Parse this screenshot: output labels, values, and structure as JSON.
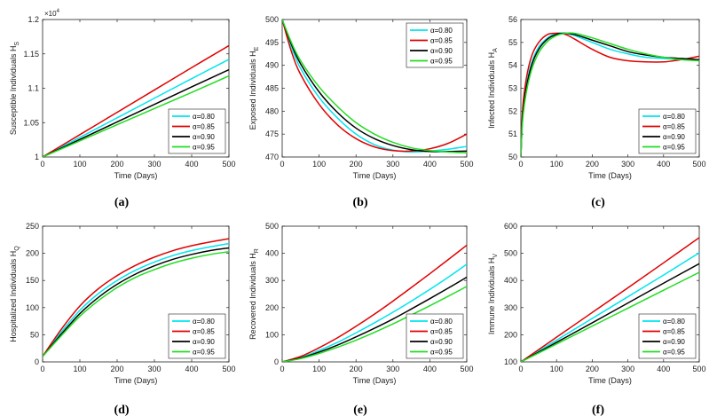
{
  "figure": {
    "xlabel_common": "Time (Days)"
  },
  "legend": {
    "labels": [
      "α=0.80",
      "α=0.85",
      "α=0.90",
      "α=0.95"
    ]
  },
  "colors": {
    "a080": "#00e5ee",
    "a085": "#e00000",
    "a090": "#000000",
    "a095": "#22dd22",
    "axis": "#222222"
  },
  "chart_data": [
    {
      "id": "a",
      "panel_label": "(a)",
      "type": "line",
      "xlabel": "Time (Days)",
      "ylabel": "Susceptible Individuals H",
      "ylabel_sub": "S",
      "xlim": [
        0,
        500
      ],
      "ylim": [
        1.0,
        1.2
      ],
      "xticks": [
        0,
        100,
        200,
        300,
        400,
        500
      ],
      "xtick_labels": [
        "0",
        "100",
        "200",
        "300",
        "400",
        "500"
      ],
      "yticks": [
        1.0,
        1.05,
        1.1,
        1.15,
        1.2
      ],
      "ytick_labels": [
        "1",
        "1.05",
        "1.1",
        "1.15",
        "1.2"
      ],
      "multiplier": "×10",
      "multiplier_exp": "4",
      "legend_position": "bottom-right",
      "series": [
        {
          "name": "α=0.80",
          "color": "#00e5ee",
          "x": [
            0,
            100,
            200,
            300,
            400,
            500
          ],
          "y": [
            1.0,
            1.0285,
            1.057,
            1.0855,
            1.114,
            1.142
          ]
        },
        {
          "name": "α=0.85",
          "color": "#e00000",
          "x": [
            0,
            100,
            200,
            300,
            400,
            500
          ],
          "y": [
            1.0,
            1.0325,
            1.065,
            1.0975,
            1.13,
            1.162
          ]
        },
        {
          "name": "α=0.90",
          "color": "#000000",
          "x": [
            0,
            100,
            200,
            300,
            400,
            500
          ],
          "y": [
            1.0,
            1.0255,
            1.051,
            1.0765,
            1.102,
            1.127
          ]
        },
        {
          "name": "α=0.95",
          "color": "#22dd22",
          "x": [
            0,
            100,
            200,
            300,
            400,
            500
          ],
          "y": [
            1.0,
            1.0235,
            1.047,
            1.0705,
            1.094,
            1.118
          ]
        }
      ]
    },
    {
      "id": "b",
      "panel_label": "(b)",
      "type": "line",
      "xlabel": "Time (Days)",
      "ylabel": "Exposed Individuals H",
      "ylabel_sub": "E",
      "xlim": [
        0,
        500
      ],
      "ylim": [
        470,
        500
      ],
      "xticks": [
        0,
        100,
        200,
        300,
        400,
        500
      ],
      "xtick_labels": [
        "0",
        "100",
        "200",
        "300",
        "400",
        "500"
      ],
      "yticks": [
        470,
        475,
        480,
        485,
        490,
        495,
        500
      ],
      "ytick_labels": [
        "470",
        "475",
        "480",
        "485",
        "490",
        "495",
        "500"
      ],
      "legend_position": "top-right",
      "series": [
        {
          "name": "α=0.80",
          "color": "#00e5ee",
          "x": [
            0,
            25,
            50,
            100,
            150,
            200,
            250,
            300,
            350,
            400,
            450,
            500
          ],
          "y": [
            500,
            494,
            489.3,
            483,
            478.5,
            475,
            472.7,
            471.5,
            471.1,
            471.3,
            471.7,
            472.3
          ]
        },
        {
          "name": "α=0.85",
          "color": "#e00000",
          "x": [
            0,
            25,
            50,
            100,
            150,
            200,
            250,
            300,
            350,
            400,
            450,
            500
          ],
          "y": [
            500,
            493,
            488,
            481.5,
            477,
            474,
            472.2,
            471.4,
            471.3,
            471.8,
            473,
            475
          ]
        },
        {
          "name": "α=0.90",
          "color": "#000000",
          "x": [
            0,
            25,
            50,
            100,
            150,
            200,
            250,
            300,
            350,
            400,
            450,
            500
          ],
          "y": [
            500,
            494.6,
            490.3,
            484.2,
            479.7,
            476.3,
            474,
            472.5,
            471.6,
            471.2,
            471.2,
            471.3
          ]
        },
        {
          "name": "α=0.95",
          "color": "#22dd22",
          "x": [
            0,
            25,
            50,
            100,
            150,
            200,
            250,
            300,
            350,
            400,
            450,
            500
          ],
          "y": [
            500,
            495,
            491,
            485.3,
            481,
            477.5,
            475,
            473.2,
            472,
            471.4,
            471.1,
            470.9
          ]
        }
      ]
    },
    {
      "id": "c",
      "panel_label": "(c)",
      "type": "line",
      "xlabel": "Time (Days)",
      "ylabel": "Infected Individuals H",
      "ylabel_sub": "A",
      "xlim": [
        0,
        500
      ],
      "ylim": [
        50,
        56
      ],
      "xticks": [
        0,
        100,
        200,
        300,
        400,
        500
      ],
      "xtick_labels": [
        "0",
        "100",
        "200",
        "300",
        "400",
        "500"
      ],
      "yticks": [
        50,
        51,
        52,
        53,
        54,
        55,
        56
      ],
      "ytick_labels": [
        "50",
        "51",
        "52",
        "53",
        "54",
        "55",
        "56"
      ],
      "legend_position": "bottom-right",
      "series": [
        {
          "name": "α=0.80",
          "color": "#00e5ee",
          "x": [
            0,
            5,
            15,
            30,
            50,
            75,
            100,
            125,
            150,
            200,
            250,
            300,
            350,
            400,
            450,
            500
          ],
          "y": [
            50,
            51.9,
            53.1,
            54.1,
            54.8,
            55.2,
            55.4,
            55.4,
            55.3,
            55.0,
            54.7,
            54.5,
            54.35,
            54.3,
            54.25,
            54.25
          ]
        },
        {
          "name": "α=0.85",
          "color": "#e00000",
          "x": [
            0,
            5,
            15,
            30,
            50,
            75,
            100,
            125,
            150,
            200,
            250,
            300,
            350,
            400,
            450,
            500
          ],
          "y": [
            50,
            52.1,
            53.4,
            54.4,
            55.0,
            55.35,
            55.4,
            55.35,
            55.15,
            54.7,
            54.35,
            54.2,
            54.15,
            54.15,
            54.25,
            54.4
          ]
        },
        {
          "name": "α=0.90",
          "color": "#000000",
          "x": [
            0,
            5,
            15,
            30,
            50,
            75,
            100,
            125,
            150,
            200,
            250,
            300,
            350,
            400,
            450,
            500
          ],
          "y": [
            50,
            51.8,
            53.0,
            54.0,
            54.7,
            55.15,
            55.35,
            55.4,
            55.35,
            55.1,
            54.85,
            54.6,
            54.45,
            54.35,
            54.3,
            54.25
          ]
        },
        {
          "name": "α=0.95",
          "color": "#22dd22",
          "x": [
            0,
            5,
            15,
            30,
            50,
            75,
            100,
            125,
            150,
            200,
            250,
            300,
            350,
            400,
            450,
            500
          ],
          "y": [
            50,
            51.6,
            52.8,
            53.8,
            54.55,
            55.05,
            55.3,
            55.4,
            55.4,
            55.2,
            54.95,
            54.7,
            54.5,
            54.35,
            54.25,
            54.2
          ]
        }
      ]
    },
    {
      "id": "d",
      "panel_label": "(d)",
      "type": "line",
      "xlabel": "Time (Days)",
      "ylabel": "Hospitalized Individuals H",
      "ylabel_sub": "Q",
      "xlim": [
        0,
        500
      ],
      "ylim": [
        0,
        250
      ],
      "xticks": [
        0,
        100,
        200,
        300,
        400,
        500
      ],
      "xtick_labels": [
        "0",
        "100",
        "200",
        "300",
        "400",
        "500"
      ],
      "yticks": [
        0,
        50,
        100,
        150,
        200,
        250
      ],
      "ytick_labels": [
        "0",
        "50",
        "100",
        "150",
        "200",
        "250"
      ],
      "legend_position": "bottom-right",
      "series": [
        {
          "name": "α=0.80",
          "color": "#00e5ee",
          "x": [
            0,
            50,
            100,
            150,
            200,
            250,
            300,
            350,
            400,
            450,
            500
          ],
          "y": [
            10,
            55,
            95,
            126,
            150,
            169,
            184,
            196,
            205,
            212,
            218
          ]
        },
        {
          "name": "α=0.85",
          "color": "#e00000",
          "x": [
            0,
            50,
            100,
            150,
            200,
            250,
            300,
            350,
            400,
            450,
            500
          ],
          "y": [
            10,
            60,
            103,
            135,
            159,
            178,
            193,
            205,
            214,
            221,
            227
          ]
        },
        {
          "name": "α=0.90",
          "color": "#000000",
          "x": [
            0,
            50,
            100,
            150,
            200,
            250,
            300,
            350,
            400,
            450,
            500
          ],
          "y": [
            10,
            51,
            89,
            119,
            143,
            162,
            177,
            189,
            198,
            205,
            210
          ]
        },
        {
          "name": "α=0.95",
          "color": "#22dd22",
          "x": [
            0,
            50,
            100,
            150,
            200,
            250,
            300,
            350,
            400,
            450,
            500
          ],
          "y": [
            10,
            48,
            84,
            113,
            137,
            156,
            170,
            182,
            191,
            198,
            203
          ]
        }
      ]
    },
    {
      "id": "e",
      "panel_label": "(e)",
      "type": "line",
      "xlabel": "Time (Days)",
      "ylabel": "Recovered Individuals H",
      "ylabel_sub": "R",
      "xlim": [
        0,
        500
      ],
      "ylim": [
        0,
        500
      ],
      "xticks": [
        0,
        100,
        200,
        300,
        400,
        500
      ],
      "xtick_labels": [
        "0",
        "100",
        "200",
        "300",
        "400",
        "500"
      ],
      "yticks": [
        0,
        100,
        200,
        300,
        400,
        500
      ],
      "ytick_labels": [
        "0",
        "100",
        "200",
        "300",
        "400",
        "500"
      ],
      "legend_position": "bottom-right",
      "series": [
        {
          "name": "α=0.80",
          "color": "#00e5ee",
          "x": [
            0,
            50,
            100,
            150,
            200,
            250,
            300,
            350,
            400,
            450,
            500
          ],
          "y": [
            0,
            16,
            42,
            72,
            107,
            144,
            183,
            224,
            267,
            312,
            360
          ]
        },
        {
          "name": "α=0.85",
          "color": "#e00000",
          "x": [
            0,
            50,
            100,
            150,
            200,
            250,
            300,
            350,
            400,
            450,
            500
          ],
          "y": [
            0,
            20,
            52,
            89,
            131,
            176,
            224,
            274,
            325,
            377,
            430
          ]
        },
        {
          "name": "α=0.90",
          "color": "#000000",
          "x": [
            0,
            50,
            100,
            150,
            200,
            250,
            300,
            350,
            400,
            450,
            500
          ],
          "y": [
            0,
            14,
            36,
            62,
            92,
            124,
            158,
            195,
            233,
            272,
            312
          ]
        },
        {
          "name": "α=0.95",
          "color": "#22dd22",
          "x": [
            0,
            50,
            100,
            150,
            200,
            250,
            300,
            350,
            400,
            450,
            500
          ],
          "y": [
            0,
            12,
            31,
            54,
            80,
            109,
            140,
            173,
            207,
            242,
            278
          ]
        }
      ]
    },
    {
      "id": "f",
      "panel_label": "(f)",
      "type": "line",
      "xlabel": "Time (Days)",
      "ylabel": "Immune Individuals H",
      "ylabel_sub": "V",
      "xlim": [
        0,
        500
      ],
      "ylim": [
        100,
        600
      ],
      "xticks": [
        0,
        100,
        200,
        300,
        400,
        500
      ],
      "xtick_labels": [
        "0",
        "100",
        "200",
        "300",
        "400",
        "500"
      ],
      "yticks": [
        100,
        200,
        300,
        400,
        500,
        600
      ],
      "ytick_labels": [
        "100",
        "200",
        "300",
        "400",
        "500",
        "600"
      ],
      "legend_position": "bottom-right",
      "series": [
        {
          "name": "α=0.80",
          "color": "#00e5ee",
          "x": [
            0,
            100,
            200,
            300,
            400,
            500
          ],
          "y": [
            100,
            180,
            260,
            340,
            420,
            502
          ]
        },
        {
          "name": "α=0.85",
          "color": "#e00000",
          "x": [
            0,
            100,
            200,
            300,
            400,
            500
          ],
          "y": [
            100,
            191,
            282,
            373,
            465,
            558
          ]
        },
        {
          "name": "α=0.90",
          "color": "#000000",
          "x": [
            0,
            100,
            200,
            300,
            400,
            500
          ],
          "y": [
            100,
            172,
            244,
            317,
            390,
            462
          ]
        },
        {
          "name": "α=0.95",
          "color": "#22dd22",
          "x": [
            0,
            100,
            200,
            300,
            400,
            500
          ],
          "y": [
            100,
            166,
            232,
            298,
            364,
            430
          ]
        }
      ]
    }
  ]
}
